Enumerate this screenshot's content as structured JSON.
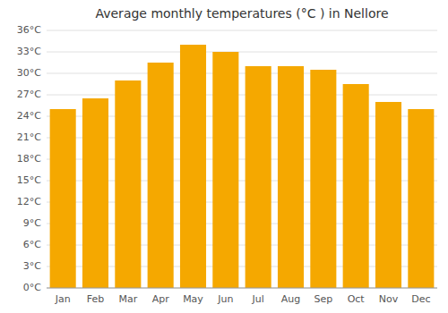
{
  "chart_data": {
    "type": "bar",
    "title": "Average monthly temperatures (°C ) in Nellore",
    "categories": [
      "Jan",
      "Feb",
      "Mar",
      "Apr",
      "May",
      "Jun",
      "Jul",
      "Aug",
      "Sep",
      "Oct",
      "Nov",
      "Dec"
    ],
    "values": [
      25.0,
      26.5,
      29.0,
      31.5,
      34.0,
      33.0,
      31.0,
      31.0,
      30.5,
      28.5,
      26.0,
      25.0
    ],
    "color": "#F5A800",
    "ylim": [
      0,
      36
    ],
    "yticks": [
      {
        "value": 0,
        "label": "0°C"
      },
      {
        "value": 3,
        "label": "3°C"
      },
      {
        "value": 6,
        "label": "6°C"
      },
      {
        "value": 9,
        "label": "9°C"
      },
      {
        "value": 12,
        "label": "12°C"
      },
      {
        "value": 15,
        "label": "15°C"
      },
      {
        "value": 18,
        "label": "18°C"
      },
      {
        "value": 21,
        "label": "21°C"
      },
      {
        "value": 24,
        "label": "24°C"
      },
      {
        "value": 27,
        "label": "27°C"
      },
      {
        "value": 30,
        "label": "30°C"
      },
      {
        "value": 33,
        "label": "33°C"
      },
      {
        "value": 36,
        "label": "36°C"
      }
    ],
    "grid": true
  }
}
